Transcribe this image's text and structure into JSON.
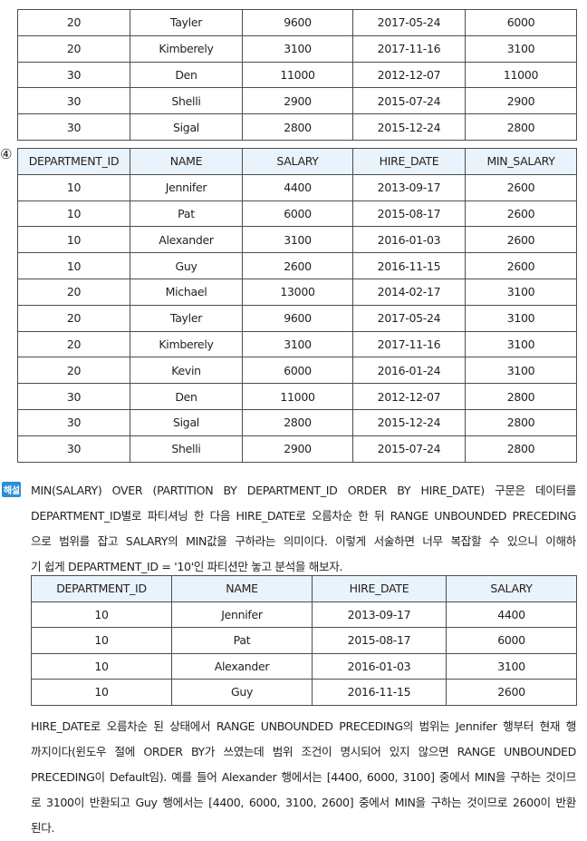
{
  "top_table": {
    "rows": [
      [
        "20",
        "Tayler",
        "9600",
        "2017-05-24",
        "6000"
      ],
      [
        "20",
        "Kimberely",
        "3100",
        "2017-11-16",
        "3100"
      ],
      [
        "30",
        "Den",
        "11000",
        "2012-12-07",
        "11000"
      ],
      [
        "30",
        "Shelli",
        "2900",
        "2015-07-24",
        "2900"
      ],
      [
        "30",
        "Sigal",
        "2800",
        "2015-12-24",
        "2800"
      ]
    ]
  },
  "option4": {
    "marker": "④",
    "headers": [
      "DEPARTMENT_ID",
      "NAME",
      "SALARY",
      "HIRE_DATE",
      "MIN_SALARY"
    ],
    "rows": [
      [
        "10",
        "Jennifer",
        "4400",
        "2013-09-17",
        "2600"
      ],
      [
        "10",
        "Pat",
        "6000",
        "2015-08-17",
        "2600"
      ],
      [
        "10",
        "Alexander",
        "3100",
        "2016-01-03",
        "2600"
      ],
      [
        "10",
        "Guy",
        "2600",
        "2016-11-15",
        "2600"
      ],
      [
        "20",
        "Michael",
        "13000",
        "2014-02-17",
        "3100"
      ],
      [
        "20",
        "Tayler",
        "9600",
        "2017-05-24",
        "3100"
      ],
      [
        "20",
        "Kimberely",
        "3100",
        "2017-11-16",
        "3100"
      ],
      [
        "20",
        "Kevin",
        "6000",
        "2016-01-24",
        "3100"
      ],
      [
        "30",
        "Den",
        "11000",
        "2012-12-07",
        "2800"
      ],
      [
        "30",
        "Sigal",
        "2800",
        "2015-12-24",
        "2800"
      ],
      [
        "30",
        "Shelli",
        "2900",
        "2015-07-24",
        "2800"
      ]
    ]
  },
  "explanation": {
    "badge": "해설",
    "para1_lines": [
      "MIN(SALARY) OVER (PARTITION BY DEPARTMENT_ID ORDER BY HIRE_DATE) 구문은 데이터를",
      "DEPARTMENT_ID별로 파티셔닝 한 다음 HIRE_DATE로 오름차순 한 뒤 RANGE UNBOUNDED PRECEDING",
      "으로 범위를 잡고 SALARY의 MIN값을 구하라는 의미이다. 이렇게 서술하면 너무 복잡할 수 있으니 이해하",
      "기 쉽게 DEPARTMENT_ID = '10'인 파티션만 놓고 분석을 해보자."
    ],
    "table": {
      "headers": [
        "DEPARTMENT_ID",
        "NAME",
        "HIRE_DATE",
        "SALARY"
      ],
      "rows": [
        [
          "10",
          "Jennifer",
          "2013-09-17",
          "4400"
        ],
        [
          "10",
          "Pat",
          "2015-08-17",
          "6000"
        ],
        [
          "10",
          "Alexander",
          "2016-01-03",
          "3100"
        ],
        [
          "10",
          "Guy",
          "2016-11-15",
          "2600"
        ]
      ]
    },
    "para2_lines": [
      "HIRE_DATE로 오름차순 된 상태에서 RANGE UNBOUNDED PRECEDING의 범위는 Jennifer 행부터 현재 행",
      "까지이다(윈도우 절에 ORDER BY가 쓰였는데 범위 조건이 명시되어 있지 않으면 RANGE UNBOUNDED",
      "PRECEDING이 Default임). 예를 들어 Alexander 행에서는 [4400, 6000, 3100] 중에서 MIN을 구하는 것이므",
      "로 3100이 반환되고 Guy 행에서는 [4400, 6000, 3100, 2600] 중에서 MIN을 구하는 것이므로 2600이 반환",
      "된다."
    ]
  }
}
